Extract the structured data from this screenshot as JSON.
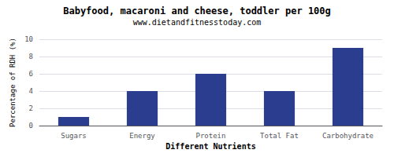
{
  "chart_data": {
    "type": "bar",
    "title": "Babyfood, macaroni and cheese, toddler per 100g",
    "subtitle": "www.dietandfitnesstoday.com",
    "categories": [
      "Sugars",
      "Energy",
      "Protein",
      "Total Fat",
      "Carbohydrate"
    ],
    "values": [
      1.0,
      4.0,
      6.0,
      4.0,
      9.0
    ],
    "color": "#2b3d8f",
    "xlabel": "Different Nutrients",
    "ylabel": "Percentage of RDH (%)",
    "ylim": [
      0,
      10
    ],
    "yticks": [
      0,
      2,
      4,
      6,
      8,
      10
    ],
    "grid": true
  }
}
